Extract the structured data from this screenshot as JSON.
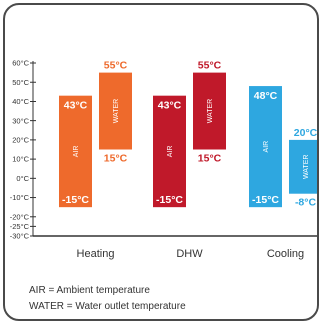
{
  "chart_data": {
    "type": "bar",
    "subtype": "floating-range",
    "ylim": [
      -30,
      60
    ],
    "yticks": [
      60,
      50,
      40,
      30,
      20,
      10,
      0,
      -10,
      -20,
      -25,
      -30
    ],
    "ytick_labels": [
      "60°C",
      "50°C",
      "40°C",
      "30°C",
      "20°C",
      "10°C",
      "0°C",
      "-10°C",
      "-20°C",
      "-25°C",
      "-30°C"
    ],
    "grid": false,
    "groups": [
      {
        "category": "Heating",
        "color": "#ee6a2c",
        "bars": [
          {
            "series": "AIR",
            "min": -15,
            "max": 43,
            "min_label": "-15°C",
            "max_label": "43°C",
            "max_label_inside": true,
            "min_label_inside": true
          },
          {
            "series": "WATER",
            "min": 15,
            "max": 55,
            "min_label": "15°C",
            "max_label": "55°C",
            "max_label_inside": false,
            "min_label_inside": false
          }
        ]
      },
      {
        "category": "DHW",
        "color": "#c0192a",
        "bars": [
          {
            "series": "AIR",
            "min": -15,
            "max": 43,
            "min_label": "-15°C",
            "max_label": "43°C",
            "max_label_inside": true,
            "min_label_inside": true
          },
          {
            "series": "WATER",
            "min": 15,
            "max": 55,
            "min_label": "15°C",
            "max_label": "55°C",
            "max_label_inside": false,
            "min_label_inside": false
          }
        ]
      },
      {
        "category": "Cooling",
        "color": "#2ea7e0",
        "bars": [
          {
            "series": "AIR",
            "min": -15,
            "max": 48,
            "min_label": "-15°C",
            "max_label": "48°C",
            "max_label_inside": true,
            "min_label_inside": true
          },
          {
            "series": "WATER",
            "min": -8,
            "max": 20,
            "min_label": "-8°C",
            "max_label": "20°C",
            "max_label_inside": false,
            "min_label_inside": false
          }
        ]
      }
    ]
  },
  "legend": {
    "air_note": "AIR = Ambient temperature",
    "water_note": "WATER = Water outlet temperature"
  }
}
